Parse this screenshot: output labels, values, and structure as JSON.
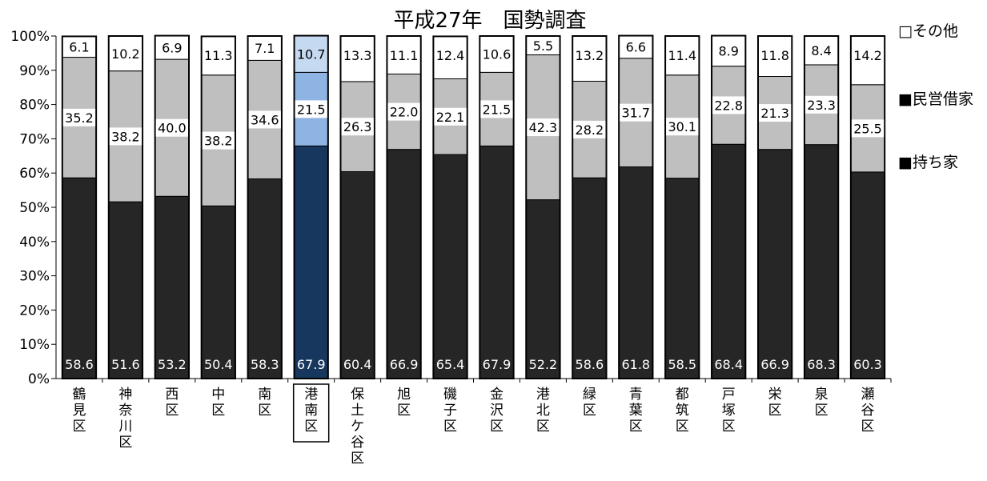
{
  "chart_data": {
    "type": "bar",
    "stacked": true,
    "normalized": true,
    "title": "平成27年　国勢調査",
    "xlabel": "",
    "ylabel": "",
    "ylim": [
      0,
      100
    ],
    "yticks": [
      "0%",
      "10%",
      "20%",
      "30%",
      "40%",
      "50%",
      "60%",
      "70%",
      "80%",
      "90%",
      "100%"
    ],
    "grid": false,
    "legend_position": "right",
    "highlight_category": "港南区",
    "categories": [
      "鶴見区",
      "神奈川区",
      "西区",
      "中区",
      "南区",
      "港南区",
      "保土ケ谷区",
      "旭区",
      "磯子区",
      "金沢区",
      "港北区",
      "緑区",
      "青葉区",
      "都筑区",
      "戸塚区",
      "栄区",
      "泉区",
      "瀬谷区"
    ],
    "series": [
      {
        "name": "持ち家",
        "legend_label": "■持ち家",
        "color": "#262626",
        "highlight_color": "#17375e",
        "values": [
          58.6,
          51.6,
          53.2,
          50.4,
          58.3,
          67.9,
          60.4,
          66.9,
          65.4,
          67.9,
          52.2,
          58.6,
          61.8,
          58.5,
          68.4,
          66.9,
          68.3,
          60.3
        ],
        "labels": [
          "58.6",
          "51.6",
          "53.2",
          "50.4",
          "58.3",
          "67.9",
          "60.4",
          "66.9",
          "65.4",
          "67.9",
          "52.2",
          "58.6",
          "61.8",
          "58.5",
          "68.4",
          "66.9",
          "68.3",
          "60.3"
        ]
      },
      {
        "name": "民営借家",
        "legend_label": "■民営借家",
        "color": "#bfbfbf",
        "highlight_color": "#8db4e2",
        "values": [
          35.2,
          38.2,
          40.0,
          38.2,
          34.6,
          21.5,
          26.3,
          22.0,
          22.1,
          21.5,
          42.3,
          28.2,
          31.7,
          30.1,
          22.8,
          21.3,
          23.3,
          25.5
        ],
        "labels": [
          "35.2",
          "38.2",
          "40.0",
          "38.2",
          "34.6",
          "21.5",
          "26.3",
          "22.0",
          "22.1",
          "21.5",
          "42.3",
          "28.2",
          "31.7",
          "30.1",
          "22.8",
          "21.3",
          "23.3",
          "25.5"
        ]
      },
      {
        "name": "その他",
        "legend_label": "□その他",
        "color": "#ffffff",
        "highlight_color": "#c5d9f1",
        "values": [
          6.1,
          10.2,
          6.9,
          11.3,
          7.1,
          10.7,
          13.3,
          11.1,
          12.4,
          10.6,
          5.5,
          13.2,
          6.6,
          11.4,
          8.9,
          11.8,
          8.4,
          14.2
        ],
        "labels": [
          "6.1",
          "10.2",
          "6.9",
          "11.3",
          "7.1",
          "10.7",
          "13.3",
          "11.1",
          "12.4",
          "10.6",
          "5.5",
          "13.2",
          "6.6",
          "11.4",
          "8.9",
          "11.8",
          "8.4",
          "14.2"
        ]
      }
    ]
  }
}
